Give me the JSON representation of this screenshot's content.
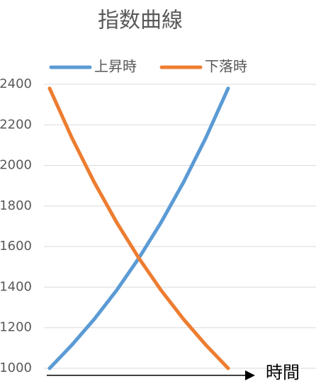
{
  "chart_data": {
    "type": "line",
    "title": "指数曲線",
    "x_label": "時間",
    "categories": [
      null,
      null,
      null,
      null,
      null,
      null,
      null,
      null,
      null
    ],
    "series": [
      {
        "name": "上昇時",
        "color": "#5b9bd5",
        "values": [
          1000,
          1115,
          1242,
          1384,
          1543,
          1720,
          1917,
          2136,
          2380
        ]
      },
      {
        "name": "下落時",
        "color": "#ed7d31",
        "values": [
          2380,
          2136,
          1917,
          1720,
          1543,
          1384,
          1242,
          1115,
          1000
        ]
      }
    ],
    "ylim": [
      1000,
      2400
    ],
    "yticks": [
      1000,
      1200,
      1400,
      1600,
      1800,
      2000,
      2200,
      2400
    ],
    "grid": true,
    "legend": "top"
  }
}
